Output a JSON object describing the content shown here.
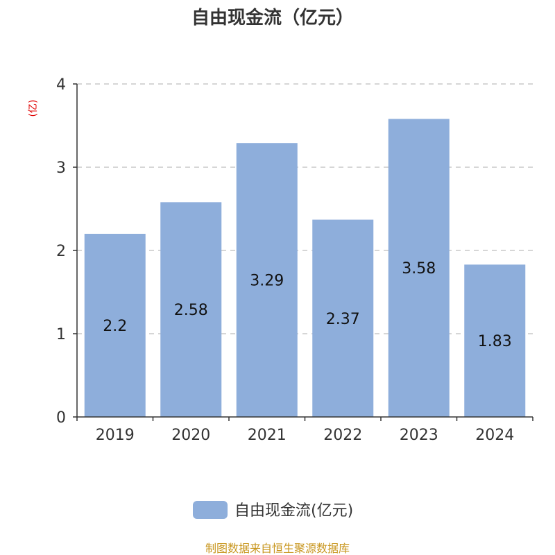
{
  "chart_data": {
    "type": "bar",
    "title": "自由现金流（亿元）",
    "y_unit": "(亿)",
    "categories": [
      "2019",
      "2020",
      "2021",
      "2022",
      "2023",
      "2024"
    ],
    "series": [
      {
        "name": "自由现金流(亿元)",
        "values": [
          2.2,
          2.58,
          3.29,
          2.37,
          3.58,
          1.83
        ],
        "color": "#8eaedb"
      }
    ],
    "ylim": [
      0,
      4
    ],
    "yticks": [
      0,
      1,
      2,
      3,
      4
    ],
    "grid": true,
    "legend_position": "bottom-center"
  },
  "source": "制图数据来自恒生聚源数据库",
  "colors": {
    "bar": "#8eaedb",
    "axis": "#333333",
    "grid": "#c8c8c8",
    "y_unit": "#e00000",
    "source": "#c8961e"
  }
}
